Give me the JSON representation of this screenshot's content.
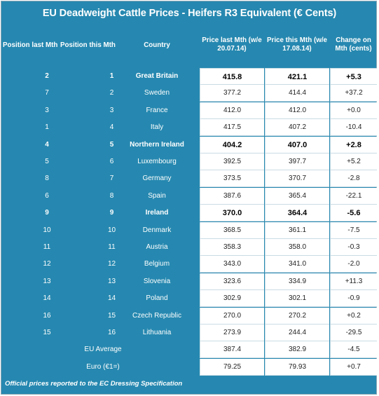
{
  "title": "EU Deadweight Cattle Prices - Heifers R3 Equivalent (€ Cents)",
  "headers": {
    "position_last": "Position last Mth",
    "position_this": "Position this Mth",
    "country": "Country",
    "price_last": "Price last Mth (w/e 20.07.14)",
    "price_this": "Price this Mth (w/e 17.08.14)",
    "change": "Change on Mth (cents)"
  },
  "rows": [
    {
      "pos_last": "2",
      "pos_this": "1",
      "country": "Great Britain",
      "price_last": "415.8",
      "price_this": "421.1",
      "change": "+5.3",
      "bold": true
    },
    {
      "pos_last": "7",
      "pos_this": "2",
      "country": "Sweden",
      "price_last": "377.2",
      "price_this": "414.4",
      "change": "+37.2",
      "bold": false
    },
    {
      "pos_last": "3",
      "pos_this": "3",
      "country": "France",
      "price_last": "412.0",
      "price_this": "412.0",
      "change": "+0.0",
      "bold": false
    },
    {
      "pos_last": "1",
      "pos_this": "4",
      "country": "Italy",
      "price_last": "417.5",
      "price_this": "407.2",
      "change": "-10.4",
      "bold": false
    },
    {
      "pos_last": "4",
      "pos_this": "5",
      "country": "Northern Ireland",
      "price_last": "404.2",
      "price_this": "407.0",
      "change": "+2.8",
      "bold": true
    },
    {
      "pos_last": "5",
      "pos_this": "6",
      "country": "Luxembourg",
      "price_last": "392.5",
      "price_this": "397.7",
      "change": "+5.2",
      "bold": false
    },
    {
      "pos_last": "8",
      "pos_this": "7",
      "country": "Germany",
      "price_last": "373.5",
      "price_this": "370.7",
      "change": "-2.8",
      "bold": false
    },
    {
      "pos_last": "6",
      "pos_this": "8",
      "country": "Spain",
      "price_last": "387.6",
      "price_this": "365.4",
      "change": "-22.1",
      "bold": false
    },
    {
      "pos_last": "9",
      "pos_this": "9",
      "country": "Ireland",
      "price_last": "370.0",
      "price_this": "364.4",
      "change": "-5.6",
      "bold": true
    },
    {
      "pos_last": "10",
      "pos_this": "10",
      "country": "Denmark",
      "price_last": "368.5",
      "price_this": "361.1",
      "change": "-7.5",
      "bold": false
    },
    {
      "pos_last": "11",
      "pos_this": "11",
      "country": "Austria",
      "price_last": "358.3",
      "price_this": "358.0",
      "change": "-0.3",
      "bold": false
    },
    {
      "pos_last": "12",
      "pos_this": "12",
      "country": "Belgium",
      "price_last": "343.0",
      "price_this": "341.0",
      "change": "-2.0",
      "bold": false
    },
    {
      "pos_last": "13",
      "pos_this": "13",
      "country": "Slovenia",
      "price_last": "323.6",
      "price_this": "334.9",
      "change": "+11.3",
      "bold": false
    },
    {
      "pos_last": "14",
      "pos_this": "14",
      "country": "Poland",
      "price_last": "302.9",
      "price_this": "302.1",
      "change": "-0.9",
      "bold": false
    },
    {
      "pos_last": "16",
      "pos_this": "15",
      "country": "Czech Republic",
      "price_last": "270.0",
      "price_this": "270.2",
      "change": "+0.2",
      "bold": false
    },
    {
      "pos_last": "15",
      "pos_this": "16",
      "country": "Lithuania",
      "price_last": "273.9",
      "price_this": "244.4",
      "change": "-29.5",
      "bold": false
    }
  ],
  "summary": [
    {
      "label": "EU Average",
      "price_last": "387.4",
      "price_this": "382.9",
      "change": "-4.5"
    },
    {
      "label": "Euro (€1=)",
      "price_last": "79.25",
      "price_this": "79.93",
      "change": "+0.7"
    }
  ],
  "footnote": "Official prices reported to the EC Dressing Specification",
  "colors": {
    "background": "#2688b0",
    "cell": "#ffffff"
  }
}
